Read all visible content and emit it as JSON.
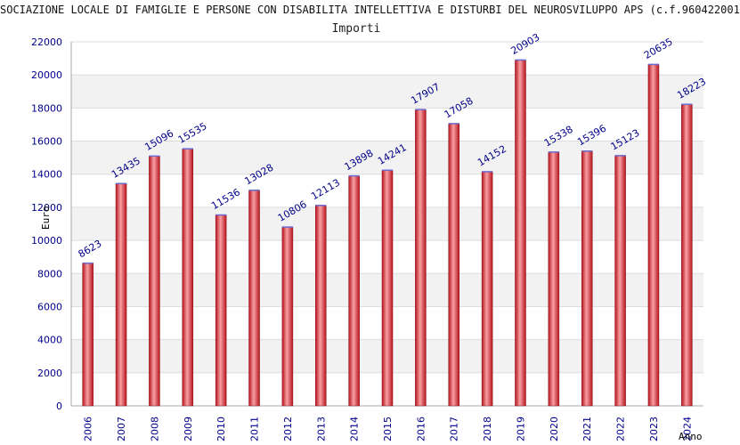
{
  "chart_data": {
    "type": "bar",
    "title": "SOCIAZIONE LOCALE DI FAMIGLIE E PERSONE CON DISABILITA INTELLETTIVA E DISTURBI DEL NEUROSVILUPPO APS (c.f.960422001",
    "subtitle": "Importi",
    "ylabel": "Euro",
    "xlabel": "Anno",
    "ylim": [
      0,
      22000
    ],
    "yticks": [
      0,
      2000,
      4000,
      6000,
      8000,
      10000,
      12000,
      14000,
      16000,
      18000,
      20000,
      22000
    ],
    "categories": [
      "2006",
      "2007",
      "2008",
      "2009",
      "2010",
      "2011",
      "2012",
      "2013",
      "2014",
      "2015",
      "2016",
      "2017",
      "2018",
      "2019",
      "2020",
      "2021",
      "2022",
      "2023",
      "2024"
    ],
    "values": [
      8623,
      13435,
      15096,
      15535,
      11536,
      13028,
      10806,
      12113,
      13898,
      14241,
      17907,
      17058,
      14152,
      20903,
      15338,
      15396,
      15123,
      20635,
      18223
    ],
    "grid": true,
    "legend": "none",
    "colors": {
      "bar": "#e0323c",
      "bar_light": "#f7a0a4",
      "bar_dark": "#b8141e",
      "bar_top": "#6a6ad0",
      "axis_text": "#00008b",
      "grid_band": "#f2f2f2",
      "grid_line": "#dcdcdc"
    }
  }
}
